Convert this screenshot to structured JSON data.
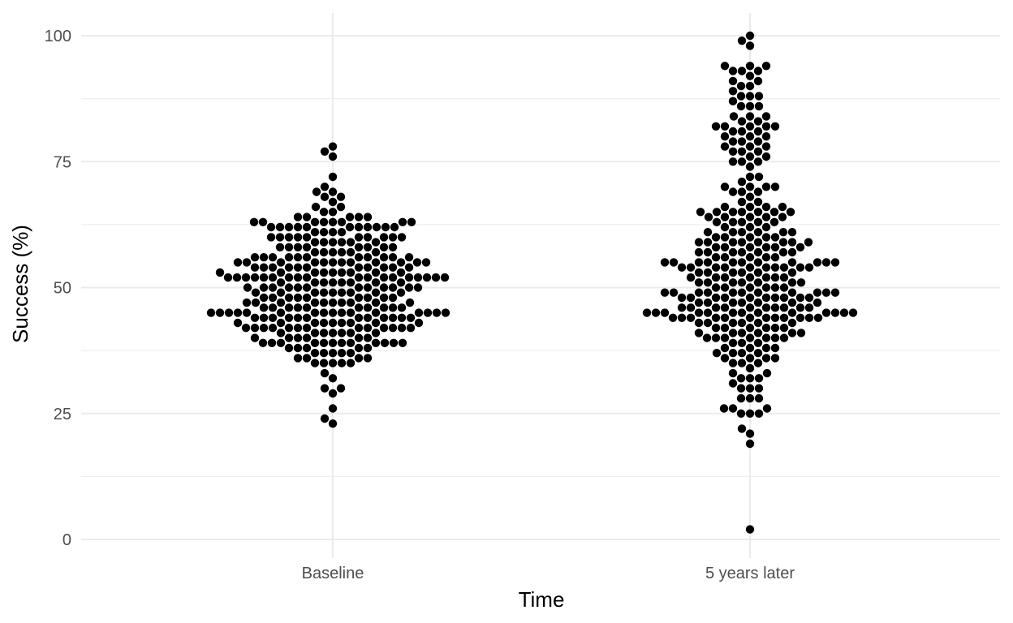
{
  "chart_data": {
    "type": "scatter",
    "title": "",
    "xlabel": "Time",
    "ylabel": "Success (%)",
    "categories": [
      "Baseline",
      "5 years later"
    ],
    "ylim": [
      0,
      100
    ],
    "y_ticks": [
      "0",
      "25",
      "50",
      "75",
      "100"
    ],
    "grid": true,
    "legend": "none",
    "point_color": "#000000",
    "series": [
      {
        "category": "Baseline",
        "values": [
          52,
          54,
          50,
          53,
          52,
          50,
          50,
          49,
          55,
          56,
          44,
          53,
          52,
          51,
          51,
          50,
          48,
          50,
          49,
          46,
          47,
          44,
          45,
          43,
          42,
          52,
          49,
          51,
          54,
          55,
          50,
          40,
          58,
          44,
          42,
          39,
          40,
          39,
          44,
          52,
          43,
          40,
          55,
          60,
          56,
          42,
          45,
          50,
          47,
          52,
          45,
          55,
          59,
          54,
          58,
          57,
          60,
          61,
          45,
          50,
          46,
          48,
          52,
          60,
          43,
          49,
          54,
          39,
          44,
          45,
          45,
          46,
          51,
          47,
          46,
          52,
          55,
          59,
          57,
          53,
          54,
          42,
          44,
          40,
          62,
          56,
          38,
          37,
          46,
          41,
          39,
          43,
          45,
          55,
          58,
          60,
          62,
          63,
          62,
          64,
          48,
          56,
          42,
          54,
          59,
          45,
          41,
          47,
          43,
          60,
          57,
          35,
          58,
          35,
          59,
          53,
          56,
          41,
          49,
          48,
          42,
          37,
          69,
          69,
          54,
          64,
          57,
          33,
          30,
          58,
          36,
          39,
          60,
          59,
          24,
          43,
          42,
          50,
          56,
          45,
          66,
          65,
          54,
          32,
          35,
          38,
          62,
          60,
          78,
          77,
          76,
          72,
          70,
          63,
          64,
          66,
          62,
          57,
          53,
          30,
          29,
          26,
          37,
          60,
          23,
          63,
          37,
          68,
          41,
          43,
          49,
          41,
          58,
          63,
          64,
          46,
          68,
          65,
          67,
          40,
          42,
          38,
          37,
          64,
          48,
          46,
          45,
          62,
          39,
          52,
          50,
          47,
          48,
          52,
          55,
          39,
          56,
          35,
          36,
          63,
          61,
          41,
          62,
          38,
          35,
          48,
          49,
          44,
          45,
          42,
          47,
          36,
          45,
          36,
          42,
          39,
          62,
          63,
          41,
          55,
          50,
          63,
          53,
          60,
          63,
          43,
          39,
          62,
          46,
          60,
          56,
          58,
          54,
          39,
          38,
          59,
          61,
          46,
          45,
          42,
          39,
          48,
          40,
          62,
          51,
          51,
          52,
          54,
          49,
          62,
          55,
          39,
          56,
          50,
          58,
          44,
          48,
          49,
          61,
          47,
          46,
          52,
          56,
          42,
          45,
          55,
          53,
          45,
          44,
          57,
          52,
          56,
          43,
          44,
          51,
          55,
          53,
          52,
          45,
          47,
          42,
          55,
          47,
          52,
          44,
          52,
          53,
          44,
          47,
          52,
          52,
          51,
          54
        ]
      },
      {
        "category": "5 years later",
        "values": [
          48,
          52,
          54,
          49,
          55,
          57,
          54,
          47,
          45,
          55,
          58,
          50,
          44,
          45,
          46,
          44,
          48,
          45,
          58,
          59,
          55,
          40,
          38,
          41,
          44,
          56,
          44,
          55,
          54,
          45,
          56,
          60,
          41,
          45,
          59,
          61,
          59,
          49,
          58,
          63,
          65,
          66,
          60,
          69,
          75,
          77,
          83,
          81,
          82,
          72,
          74,
          36,
          33,
          55,
          68,
          83,
          78,
          75,
          37,
          34,
          31,
          35,
          43,
          56,
          45,
          52,
          56,
          57,
          61,
          49,
          65,
          87,
          88,
          64,
          65,
          79,
          76,
          69,
          39,
          28,
          30,
          30,
          32,
          43,
          45,
          55,
          63,
          86,
          82,
          75,
          84,
          67,
          79,
          89,
          90,
          92,
          82,
          91,
          94,
          40,
          46,
          48,
          35,
          58,
          25,
          26,
          41,
          32,
          36,
          52,
          54,
          59,
          60,
          60,
          53,
          61,
          70,
          59,
          71,
          77,
          93,
          94,
          52,
          33,
          25,
          25,
          44,
          28,
          55,
          57,
          66,
          76,
          81,
          57,
          72,
          98,
          100,
          99,
          84,
          82,
          26,
          50,
          54,
          78,
          44,
          67,
          69,
          64,
          37,
          40,
          46,
          21,
          22,
          28,
          19,
          2,
          39,
          48,
          50,
          62,
          63,
          51,
          53,
          52,
          54,
          80,
          93,
          64,
          44,
          48,
          70,
          48,
          63,
          54,
          80,
          81,
          88,
          90,
          94,
          32,
          30,
          49,
          56,
          59,
          48,
          53,
          55,
          51,
          45,
          50,
          65,
          79,
          70,
          65,
          38,
          42,
          47,
          36,
          44,
          51,
          42,
          26,
          43,
          57,
          59,
          63,
          60,
          64,
          38,
          37,
          41,
          49,
          42,
          40,
          70,
          84,
          77,
          80,
          93,
          91,
          78,
          82,
          86,
          86,
          88,
          54,
          61,
          62,
          64,
          52,
          55,
          38,
          49,
          46,
          65,
          47,
          35,
          59,
          44,
          51,
          43,
          37,
          40,
          53,
          57,
          55,
          58,
          62,
          66,
          46,
          45,
          47,
          49,
          54,
          36,
          51,
          48,
          46,
          65,
          61,
          48,
          57,
          58,
          55,
          53,
          50,
          42,
          39,
          45,
          49,
          44,
          41,
          54,
          44,
          46,
          47,
          45,
          40,
          43,
          51,
          49,
          42,
          66,
          61,
          48,
          49,
          45,
          46,
          44,
          42,
          41,
          52,
          47,
          43,
          46,
          40,
          49,
          53,
          47,
          50,
          51,
          46,
          45
        ]
      }
    ]
  }
}
